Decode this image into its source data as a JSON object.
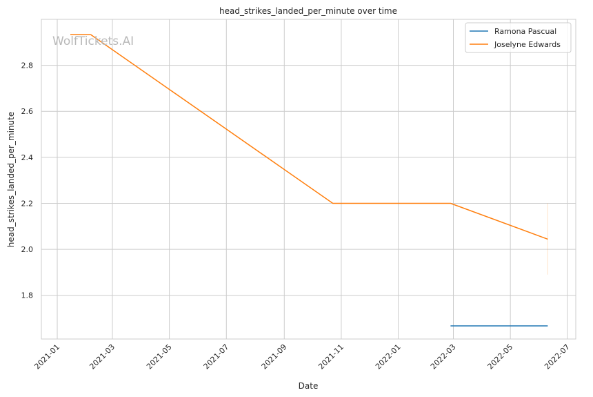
{
  "chart_data": {
    "type": "line",
    "title": "head_strikes_landed_per_minute over time",
    "xlabel": "Date",
    "ylabel": "head_strikes_landed_per_minute",
    "x_ticks": [
      "2021-01",
      "2021-03",
      "2021-05",
      "2021-07",
      "2021-09",
      "2021-11",
      "2022-01",
      "2022-03",
      "2022-05",
      "2022-07"
    ],
    "xlim": [
      "2020-12-15",
      "2022-07-10"
    ],
    "y_ticks": [
      1.8,
      2.0,
      2.2,
      2.4,
      2.6,
      2.8
    ],
    "ylim": [
      1.61,
      3.0
    ],
    "grid": true,
    "legend_position": "upper-right",
    "watermark": "WolfTickets.AI",
    "series": [
      {
        "name": "Ramona Pascual",
        "color": "#1f77b4",
        "points": [
          {
            "x": "2022-02-26",
            "y": 1.667
          },
          {
            "x": "2022-06-10",
            "y": 1.667
          }
        ]
      },
      {
        "name": "Joselyne Edwards",
        "color": "#ff7f0e",
        "points": [
          {
            "x": "2021-01-15",
            "y": 2.933
          },
          {
            "x": "2021-02-06",
            "y": 2.933
          },
          {
            "x": "2021-10-23",
            "y": 2.2
          },
          {
            "x": "2022-02-26",
            "y": 2.2
          },
          {
            "x": "2022-06-10",
            "y": 2.044
          }
        ],
        "band": {
          "x": "2022-06-10",
          "y_low": 1.89,
          "y_high": 2.2
        }
      }
    ]
  }
}
